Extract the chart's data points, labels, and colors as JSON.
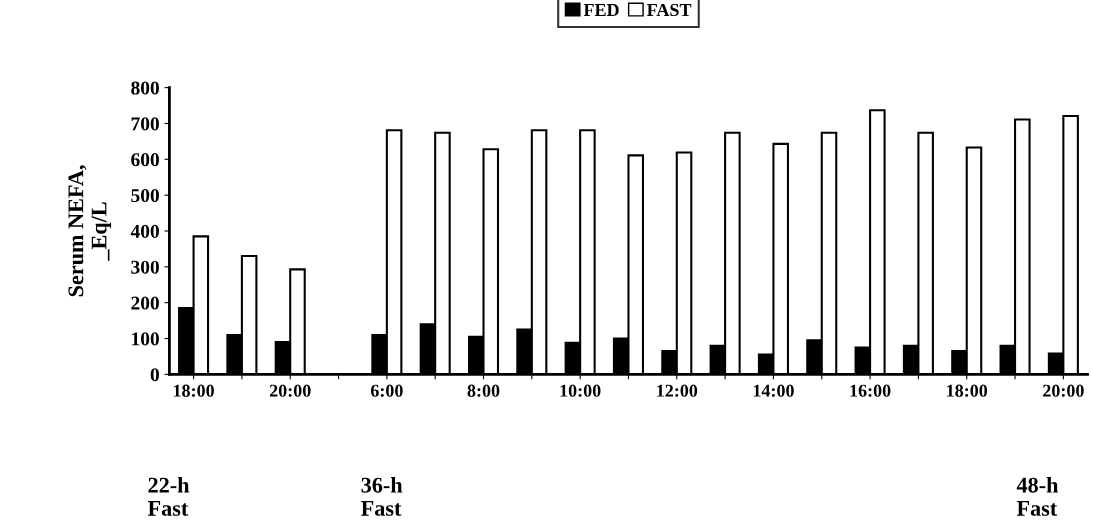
{
  "chart_data": {
    "type": "bar",
    "ylabel": "Serum NEFA,\n_Eq/L",
    "categories": [
      "18:00",
      null,
      "20:00",
      null,
      "6:00",
      null,
      "8:00",
      null,
      "10:00",
      null,
      "12:00",
      null,
      "14:00",
      null,
      "16:00",
      null,
      "18:00",
      null,
      "20:00"
    ],
    "series": [
      {
        "name": "FED",
        "color": "#000000",
        "values": [
          185,
          110,
          90,
          null,
          110,
          140,
          105,
          125,
          88,
          100,
          65,
          80,
          55,
          95,
          75,
          80,
          65,
          80,
          58
        ]
      },
      {
        "name": "FAST",
        "color": "#ffffff",
        "values": [
          385,
          330,
          293,
          null,
          681,
          674,
          628,
          681,
          681,
          611,
          619,
          674,
          643,
          674,
          737,
          674,
          633,
          711,
          721
        ]
      }
    ],
    "ylim": [
      0,
      800
    ],
    "yticks": [
      0,
      100,
      200,
      300,
      400,
      500,
      600,
      700,
      800
    ],
    "grid": false,
    "legend": "top",
    "annotations": [
      "22-h\nFast",
      "36-h\nFast",
      "48-h\nFast"
    ]
  }
}
